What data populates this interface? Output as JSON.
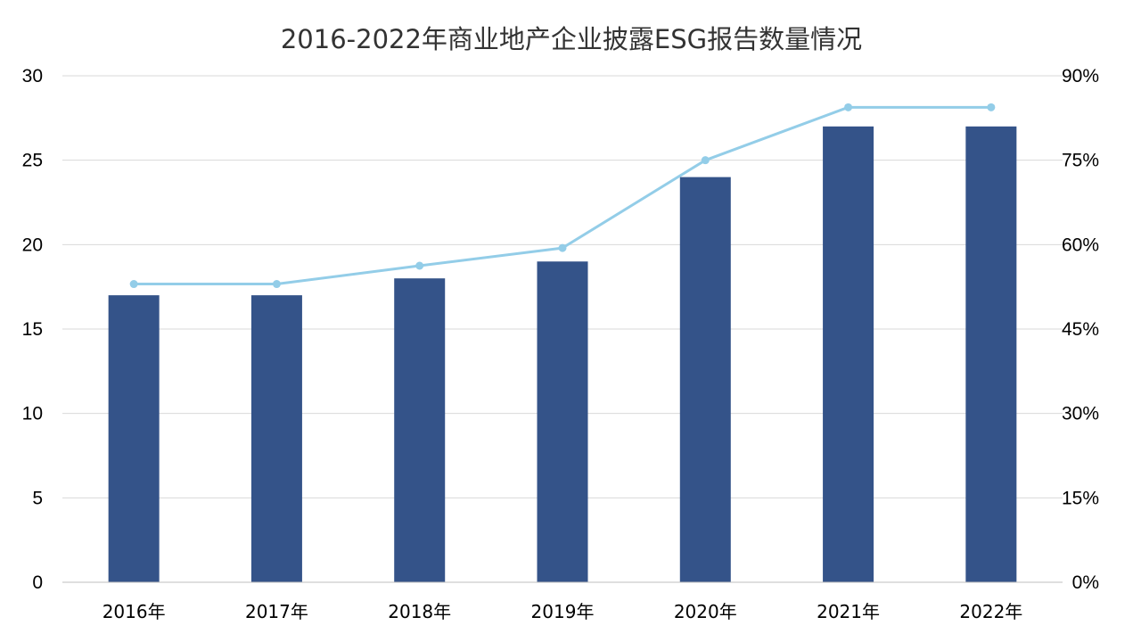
{
  "chart_data": {
    "type": "bar",
    "title": "2016-2022年商业地产企业披露ESG报告数量情况",
    "xlabel": "",
    "ylabel": "",
    "categories": [
      "2016年",
      "2017年",
      "2018年",
      "2019年",
      "2020年",
      "2021年",
      "2022年"
    ],
    "series": [
      {
        "type": "bar",
        "axis": "left",
        "color": "#345389",
        "values": [
          17,
          17,
          18,
          19,
          24,
          27,
          27
        ]
      },
      {
        "type": "line",
        "axis": "right",
        "color": "#93CDE8",
        "values": [
          0.53,
          0.53,
          0.5625,
          0.594,
          0.75,
          0.844,
          0.844
        ]
      }
    ],
    "y_left": {
      "min": 0,
      "max": 30,
      "ticks": [
        0,
        5,
        10,
        15,
        20,
        25,
        30
      ],
      "tick_labels": [
        "0",
        "5",
        "10",
        "15",
        "20",
        "25",
        "30"
      ]
    },
    "y_right": {
      "min": 0,
      "max": 0.9,
      "ticks": [
        0,
        0.15,
        0.3,
        0.45,
        0.6,
        0.75,
        0.9
      ],
      "tick_labels": [
        "0%",
        "15%",
        "30%",
        "45%",
        "60%",
        "75%",
        "90%"
      ]
    },
    "grid": true,
    "legend": "none",
    "colors": {
      "grid": "#D9D9D9",
      "axis": "#BFBFBF",
      "title": "#333333"
    }
  }
}
